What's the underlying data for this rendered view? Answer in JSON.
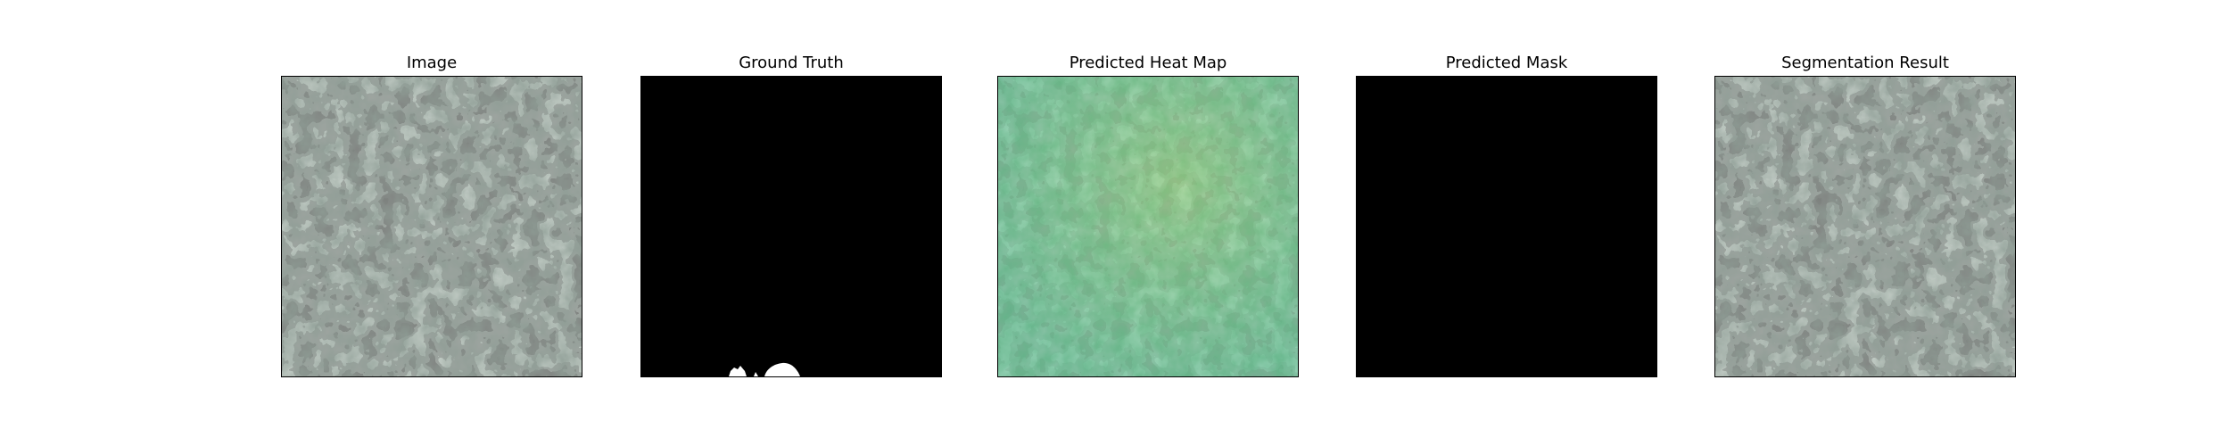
{
  "panels": [
    {
      "id": "image",
      "title": "Image",
      "kind": "texture"
    },
    {
      "id": "ground-truth",
      "title": "Ground Truth",
      "kind": "mask-gt"
    },
    {
      "id": "predicted-heat-map",
      "title": "Predicted Heat Map",
      "kind": "heatmap"
    },
    {
      "id": "predicted-mask",
      "title": "Predicted Mask",
      "kind": "mask-empty"
    },
    {
      "id": "segmentation-result",
      "title": "Segmentation Result",
      "kind": "texture"
    }
  ],
  "colors": {
    "texture_light": "#8e9d95",
    "texture_dark": "#323634",
    "heatmap_base": "#6aba86",
    "heatmap_dark": "#3f6d4c",
    "mask_background": "#000000",
    "mask_foreground": "#ffffff"
  }
}
